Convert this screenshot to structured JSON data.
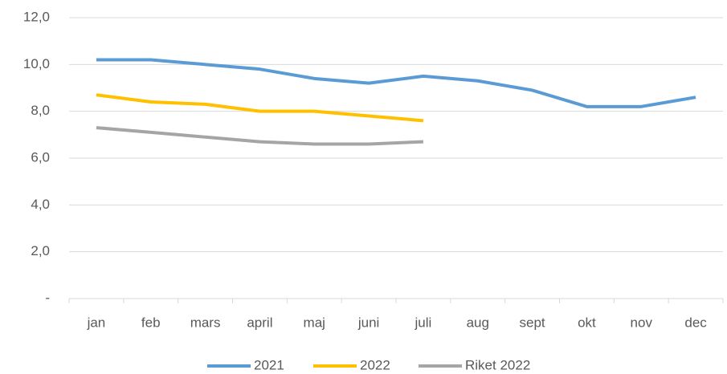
{
  "chart_data": {
    "type": "line",
    "categories": [
      "jan",
      "feb",
      "mars",
      "april",
      "maj",
      "juni",
      "juli",
      "aug",
      "sept",
      "okt",
      "nov",
      "dec"
    ],
    "series": [
      {
        "name": "2021",
        "color": "#5b9bd5",
        "values": [
          10.2,
          10.2,
          10.0,
          9.8,
          9.4,
          9.2,
          9.5,
          9.3,
          8.9,
          8.2,
          8.2,
          8.6
        ]
      },
      {
        "name": "2022",
        "color": "#ffc000",
        "values": [
          8.7,
          8.4,
          8.3,
          8.0,
          8.0,
          7.8,
          7.6,
          null,
          null,
          null,
          null,
          null
        ]
      },
      {
        "name": "Riket 2022",
        "color": "#a5a5a5",
        "values": [
          7.3,
          7.1,
          6.9,
          6.7,
          6.6,
          6.6,
          6.7,
          null,
          null,
          null,
          null,
          null
        ]
      }
    ],
    "ylim": [
      0,
      12
    ],
    "yticks": [
      {
        "value": 0,
        "label": "-"
      },
      {
        "value": 2,
        "label": "2,0"
      },
      {
        "value": 4,
        "label": "4,0"
      },
      {
        "value": 6,
        "label": "6,0"
      },
      {
        "value": 8,
        "label": "8,0"
      },
      {
        "value": 10,
        "label": "10,0"
      },
      {
        "value": 12,
        "label": "12,0"
      }
    ],
    "grid": true,
    "legend": "bottom"
  }
}
